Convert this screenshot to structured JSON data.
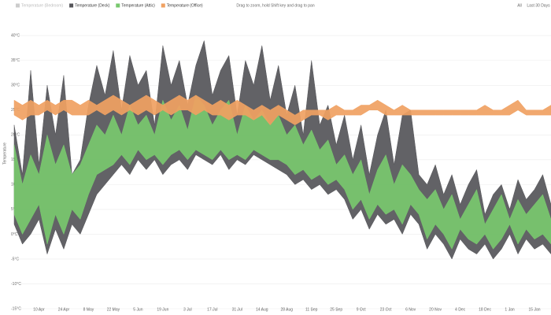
{
  "chart_data": {
    "type": "band",
    "hint": "Drag to zoom, hold Shift key and drag to pan",
    "buttons": [
      "All",
      "Last 30 Days"
    ],
    "y_label": "Temperature",
    "categories": [
      null,
      null,
      null,
      "10 Apr",
      null,
      null,
      "24 Apr",
      null,
      null,
      "8 May",
      null,
      null,
      "22 May",
      null,
      null,
      "5 Jun",
      null,
      null,
      "19 Jun",
      null,
      null,
      "3 Jul",
      null,
      null,
      "17 Jul",
      null,
      null,
      "31 Jul",
      null,
      null,
      "14 Aug",
      null,
      null,
      "28 Aug",
      null,
      null,
      "11 Sep",
      null,
      null,
      "25 Sep",
      null,
      null,
      "9 Oct",
      null,
      null,
      "23 Oct",
      null,
      null,
      "6 Nov",
      null,
      null,
      "20 Nov",
      null,
      null,
      "4 Dec",
      null,
      null,
      "18 Dec",
      null,
      null,
      "1 Jan",
      null,
      null,
      "15 Jan",
      null,
      null
    ],
    "ylim": [
      -15,
      44
    ],
    "yticks": [
      {
        "value": -15,
        "label": "-15°C"
      },
      {
        "value": -10,
        "label": "-10°C"
      },
      {
        "value": -5,
        "label": "-5°C"
      },
      {
        "value": 0,
        "label": "0°C"
      },
      {
        "value": 5,
        "label": "5°C"
      },
      {
        "value": 10,
        "label": "10°C"
      },
      {
        "value": 15,
        "label": "15°C"
      },
      {
        "value": 20,
        "label": "20°C"
      },
      {
        "value": 25,
        "label": "25°C"
      },
      {
        "value": 30,
        "label": "30°C"
      },
      {
        "value": 35,
        "label": "35°C"
      },
      {
        "value": 40,
        "label": "40°C"
      }
    ],
    "grid": true,
    "series": [
      {
        "name": "Temperature (Bedroom)",
        "color": "#bbbbbb",
        "visible": false
      },
      {
        "name": "Temperature (Deck)",
        "color": "#555559",
        "visible": true,
        "high": [
          22,
          12,
          33,
          14,
          30,
          20,
          32,
          12,
          15,
          26,
          34,
          28,
          37,
          25,
          36,
          30,
          33,
          22,
          38,
          30,
          35,
          26,
          34,
          39,
          28,
          33,
          36,
          24,
          35,
          30,
          38,
          27,
          34,
          24,
          30,
          20,
          35,
          22,
          26,
          18,
          24,
          15,
          22,
          12,
          20,
          25,
          14,
          24,
          25,
          12,
          10,
          14,
          8,
          12,
          6,
          10,
          13,
          4,
          8,
          10,
          5,
          11,
          7,
          9,
          12,
          6
        ],
        "low": [
          2,
          -2,
          0,
          3,
          -4,
          1,
          -3,
          2,
          0,
          4,
          8,
          10,
          12,
          14,
          12,
          15,
          13,
          15,
          12,
          14,
          15,
          13,
          16,
          15,
          14,
          16,
          13,
          15,
          14,
          16,
          15,
          14,
          13,
          12,
          10,
          11,
          9,
          10,
          8,
          9,
          7,
          3,
          5,
          1,
          4,
          2,
          3,
          0,
          4,
          2,
          -3,
          0,
          -2,
          -5,
          -1,
          -3,
          -4,
          -2,
          -5,
          -3,
          0,
          -4,
          -1,
          -3,
          -2,
          -4
        ]
      },
      {
        "name": "Temperature (Attic)",
        "color": "#78c86e",
        "visible": true,
        "high": [
          18,
          10,
          16,
          12,
          20,
          14,
          18,
          12,
          14,
          18,
          22,
          20,
          24,
          20,
          26,
          22,
          24,
          20,
          27,
          23,
          26,
          21,
          28,
          26,
          22,
          25,
          27,
          20,
          26,
          23,
          25,
          22,
          24,
          20,
          22,
          18,
          21,
          17,
          19,
          14,
          16,
          12,
          15,
          8,
          13,
          16,
          10,
          14,
          12,
          9,
          7,
          9,
          5,
          8,
          3,
          6,
          9,
          2,
          5,
          8,
          3,
          7,
          4,
          6,
          8,
          3
        ],
        "low": [
          4,
          0,
          3,
          6,
          -2,
          4,
          0,
          5,
          3,
          8,
          12,
          13,
          14,
          16,
          14,
          17,
          15,
          16,
          14,
          16,
          17,
          15,
          17,
          16,
          15,
          17,
          15,
          16,
          15,
          17,
          16,
          15,
          15,
          14,
          12,
          13,
          11,
          12,
          10,
          11,
          9,
          5,
          7,
          3,
          6,
          4,
          5,
          2,
          6,
          4,
          -1,
          2,
          0,
          -3,
          1,
          -1,
          -2,
          0,
          -3,
          -1,
          2,
          -2,
          1,
          -1,
          0,
          -2
        ]
      },
      {
        "name": "Temperature (Office)",
        "color": "#f0a162",
        "visible": true,
        "high": [
          27,
          26,
          27,
          26,
          27,
          26,
          27,
          27,
          26,
          27,
          26,
          27,
          28,
          27,
          26,
          27,
          28,
          27,
          26,
          27,
          28,
          27,
          28,
          27,
          26,
          27,
          26,
          27,
          26,
          25,
          26,
          25,
          26,
          25,
          24,
          25,
          25,
          25,
          25,
          26,
          25,
          25,
          26,
          26,
          27,
          26,
          25,
          26,
          25,
          25,
          25,
          25,
          25,
          25,
          25,
          25,
          25,
          26,
          25,
          25,
          26,
          27,
          25,
          25,
          25,
          26
        ],
        "low": [
          24,
          23,
          24,
          24,
          25,
          24,
          25,
          24,
          24,
          24,
          25,
          24,
          25,
          24,
          25,
          24,
          25,
          24,
          25,
          24,
          25,
          25,
          24,
          25,
          24,
          24,
          23,
          24,
          24,
          23,
          24,
          22,
          24,
          23,
          22,
          23,
          24,
          24,
          23,
          24,
          24,
          24,
          24,
          25,
          25,
          24,
          24,
          24,
          24,
          24,
          24,
          24,
          24,
          24,
          24,
          24,
          24,
          24,
          24,
          24,
          24,
          25,
          24,
          24,
          24,
          24
        ]
      }
    ]
  }
}
